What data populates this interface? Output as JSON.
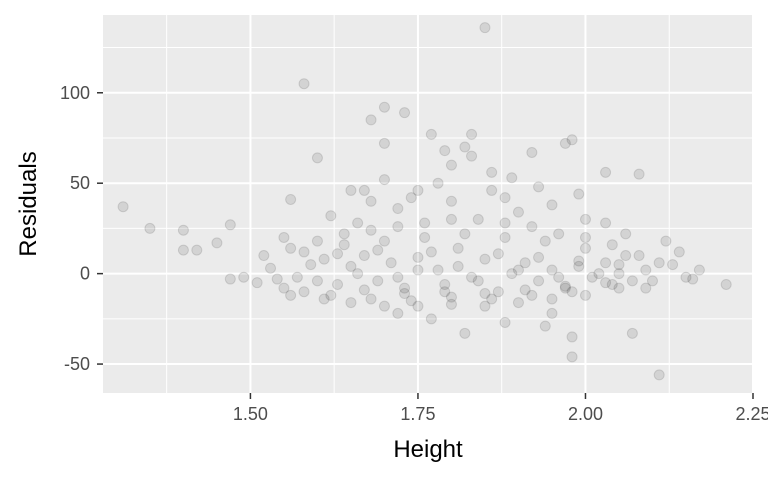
{
  "chart_data": {
    "type": "scatter",
    "title": "",
    "xlabel": "Height",
    "ylabel": "Residuals",
    "xlim": [
      1.28,
      2.25
    ],
    "ylim": [
      -66,
      143
    ],
    "x_ticks": [
      1.5,
      1.75,
      2.0,
      2.25
    ],
    "x_tick_labels": [
      "1.50",
      "1.75",
      "2.00",
      "2.25"
    ],
    "y_ticks": [
      -50,
      0,
      50,
      100
    ],
    "y_tick_labels": [
      "-50",
      "0",
      "50",
      "100"
    ],
    "grid": true,
    "point_opacity": 0.1,
    "colors": {
      "panel": "#ebebeb",
      "grid": "#ffffff",
      "point": "#000000"
    },
    "series": [
      {
        "points": [
          [
            1.85,
            136
          ],
          [
            1.58,
            105
          ],
          [
            1.7,
            92
          ],
          [
            1.73,
            89
          ],
          [
            1.68,
            85
          ],
          [
            1.77,
            77
          ],
          [
            1.83,
            77
          ],
          [
            1.7,
            72
          ],
          [
            1.98,
            74
          ],
          [
            1.97,
            72
          ],
          [
            1.82,
            70
          ],
          [
            1.79,
            68
          ],
          [
            1.92,
            67
          ],
          [
            1.83,
            65
          ],
          [
            1.6,
            64
          ],
          [
            1.8,
            60
          ],
          [
            2.03,
            56
          ],
          [
            2.08,
            55
          ],
          [
            1.7,
            52
          ],
          [
            1.86,
            56
          ],
          [
            1.65,
            46
          ],
          [
            1.67,
            46
          ],
          [
            1.75,
            46
          ],
          [
            1.56,
            41
          ],
          [
            1.31,
            37
          ],
          [
            1.35,
            25
          ],
          [
            1.4,
            24
          ],
          [
            1.4,
            13
          ],
          [
            1.42,
            13
          ],
          [
            1.47,
            27
          ],
          [
            1.45,
            17
          ],
          [
            1.47,
            -3
          ],
          [
            1.49,
            -2
          ],
          [
            1.51,
            -5
          ],
          [
            2.07,
            -33
          ],
          [
            2.11,
            -56
          ],
          [
            1.98,
            -46
          ],
          [
            1.98,
            -35
          ],
          [
            1.94,
            -29
          ],
          [
            1.82,
            -33
          ],
          [
            2.12,
            18
          ],
          [
            2.14,
            12
          ],
          [
            2.15,
            -2
          ],
          [
            2.17,
            2
          ],
          [
            2.21,
            -6
          ],
          [
            1.72,
            -22
          ],
          [
            1.77,
            -25
          ],
          [
            1.88,
            -27
          ],
          [
            1.95,
            -22
          ],
          [
            2.09,
            -8
          ],
          [
            1.62,
            32
          ],
          [
            1.72,
            36
          ],
          [
            1.8,
            40
          ],
          [
            1.88,
            42
          ],
          [
            1.95,
            38
          ],
          [
            2.0,
            30
          ],
          [
            1.66,
            28
          ],
          [
            1.9,
            34
          ],
          [
            2.03,
            28
          ],
          [
            1.55,
            20
          ],
          [
            1.53,
            3
          ],
          [
            1.55,
            -8
          ],
          [
            1.58,
            -10
          ],
          [
            1.61,
            -14
          ],
          [
            1.65,
            -16
          ],
          [
            1.7,
            -18
          ],
          [
            1.75,
            -18
          ],
          [
            1.8,
            -17
          ],
          [
            1.85,
            -18
          ],
          [
            1.9,
            -16
          ],
          [
            1.95,
            -14
          ],
          [
            2.0,
            -12
          ],
          [
            2.05,
            -8
          ],
          [
            2.1,
            -4
          ],
          [
            2.13,
            5
          ],
          [
            2.16,
            -3
          ],
          [
            1.52,
            10
          ],
          [
            1.56,
            14
          ],
          [
            1.6,
            18
          ],
          [
            1.64,
            22
          ],
          [
            1.68,
            24
          ],
          [
            1.72,
            26
          ],
          [
            1.76,
            28
          ],
          [
            1.8,
            30
          ],
          [
            1.84,
            30
          ],
          [
            1.88,
            28
          ],
          [
            1.92,
            26
          ],
          [
            1.96,
            22
          ],
          [
            2.0,
            20
          ],
          [
            2.04,
            16
          ],
          [
            2.08,
            10
          ],
          [
            2.11,
            6
          ],
          [
            1.78,
            50
          ],
          [
            1.89,
            53
          ],
          [
            1.93,
            48
          ],
          [
            1.86,
            46
          ],
          [
            1.74,
            42
          ],
          [
            1.68,
            40
          ],
          [
            1.99,
            44
          ],
          [
            2.06,
            22
          ],
          [
            1.57,
            -2
          ],
          [
            1.59,
            5
          ],
          [
            1.61,
            8
          ],
          [
            1.63,
            -6
          ],
          [
            1.65,
            4
          ],
          [
            1.67,
            10
          ],
          [
            1.69,
            -4
          ],
          [
            1.71,
            6
          ],
          [
            1.73,
            -8
          ],
          [
            1.75,
            2
          ],
          [
            1.77,
            12
          ],
          [
            1.79,
            -6
          ],
          [
            1.81,
            4
          ],
          [
            1.83,
            -2
          ],
          [
            1.85,
            8
          ],
          [
            1.87,
            -10
          ],
          [
            1.89,
            0
          ],
          [
            1.91,
            6
          ],
          [
            1.93,
            -4
          ],
          [
            1.95,
            2
          ],
          [
            1.97,
            -8
          ],
          [
            1.99,
            4
          ],
          [
            2.01,
            -2
          ],
          [
            2.03,
            6
          ],
          [
            2.05,
            0
          ],
          [
            2.07,
            -4
          ],
          [
            2.09,
            2
          ],
          [
            1.56,
            -12
          ],
          [
            1.62,
            -12
          ],
          [
            1.68,
            -14
          ],
          [
            1.74,
            -15
          ],
          [
            1.8,
            -13
          ],
          [
            1.86,
            -14
          ],
          [
            1.92,
            -12
          ],
          [
            1.98,
            -10
          ],
          [
            2.04,
            -6
          ],
          [
            1.58,
            12
          ],
          [
            1.64,
            16
          ],
          [
            1.7,
            18
          ],
          [
            1.76,
            20
          ],
          [
            1.82,
            22
          ],
          [
            1.88,
            20
          ],
          [
            1.94,
            18
          ],
          [
            2.0,
            14
          ],
          [
            2.06,
            10
          ],
          [
            1.6,
            -4
          ],
          [
            1.66,
            0
          ],
          [
            1.72,
            -2
          ],
          [
            1.78,
            2
          ],
          [
            1.84,
            -4
          ],
          [
            1.9,
            2
          ],
          [
            1.96,
            -2
          ],
          [
            2.02,
            0
          ],
          [
            1.54,
            -3
          ],
          [
            1.63,
            11
          ],
          [
            1.69,
            13
          ],
          [
            1.75,
            9
          ],
          [
            1.81,
            14
          ],
          [
            1.87,
            11
          ],
          [
            1.93,
            9
          ],
          [
            1.99,
            7
          ],
          [
            2.05,
            5
          ],
          [
            1.67,
            -9
          ],
          [
            1.73,
            -11
          ],
          [
            1.79,
            -10
          ],
          [
            1.85,
            -11
          ],
          [
            1.91,
            -9
          ],
          [
            1.97,
            -7
          ],
          [
            2.03,
            -5
          ]
        ]
      }
    ]
  }
}
